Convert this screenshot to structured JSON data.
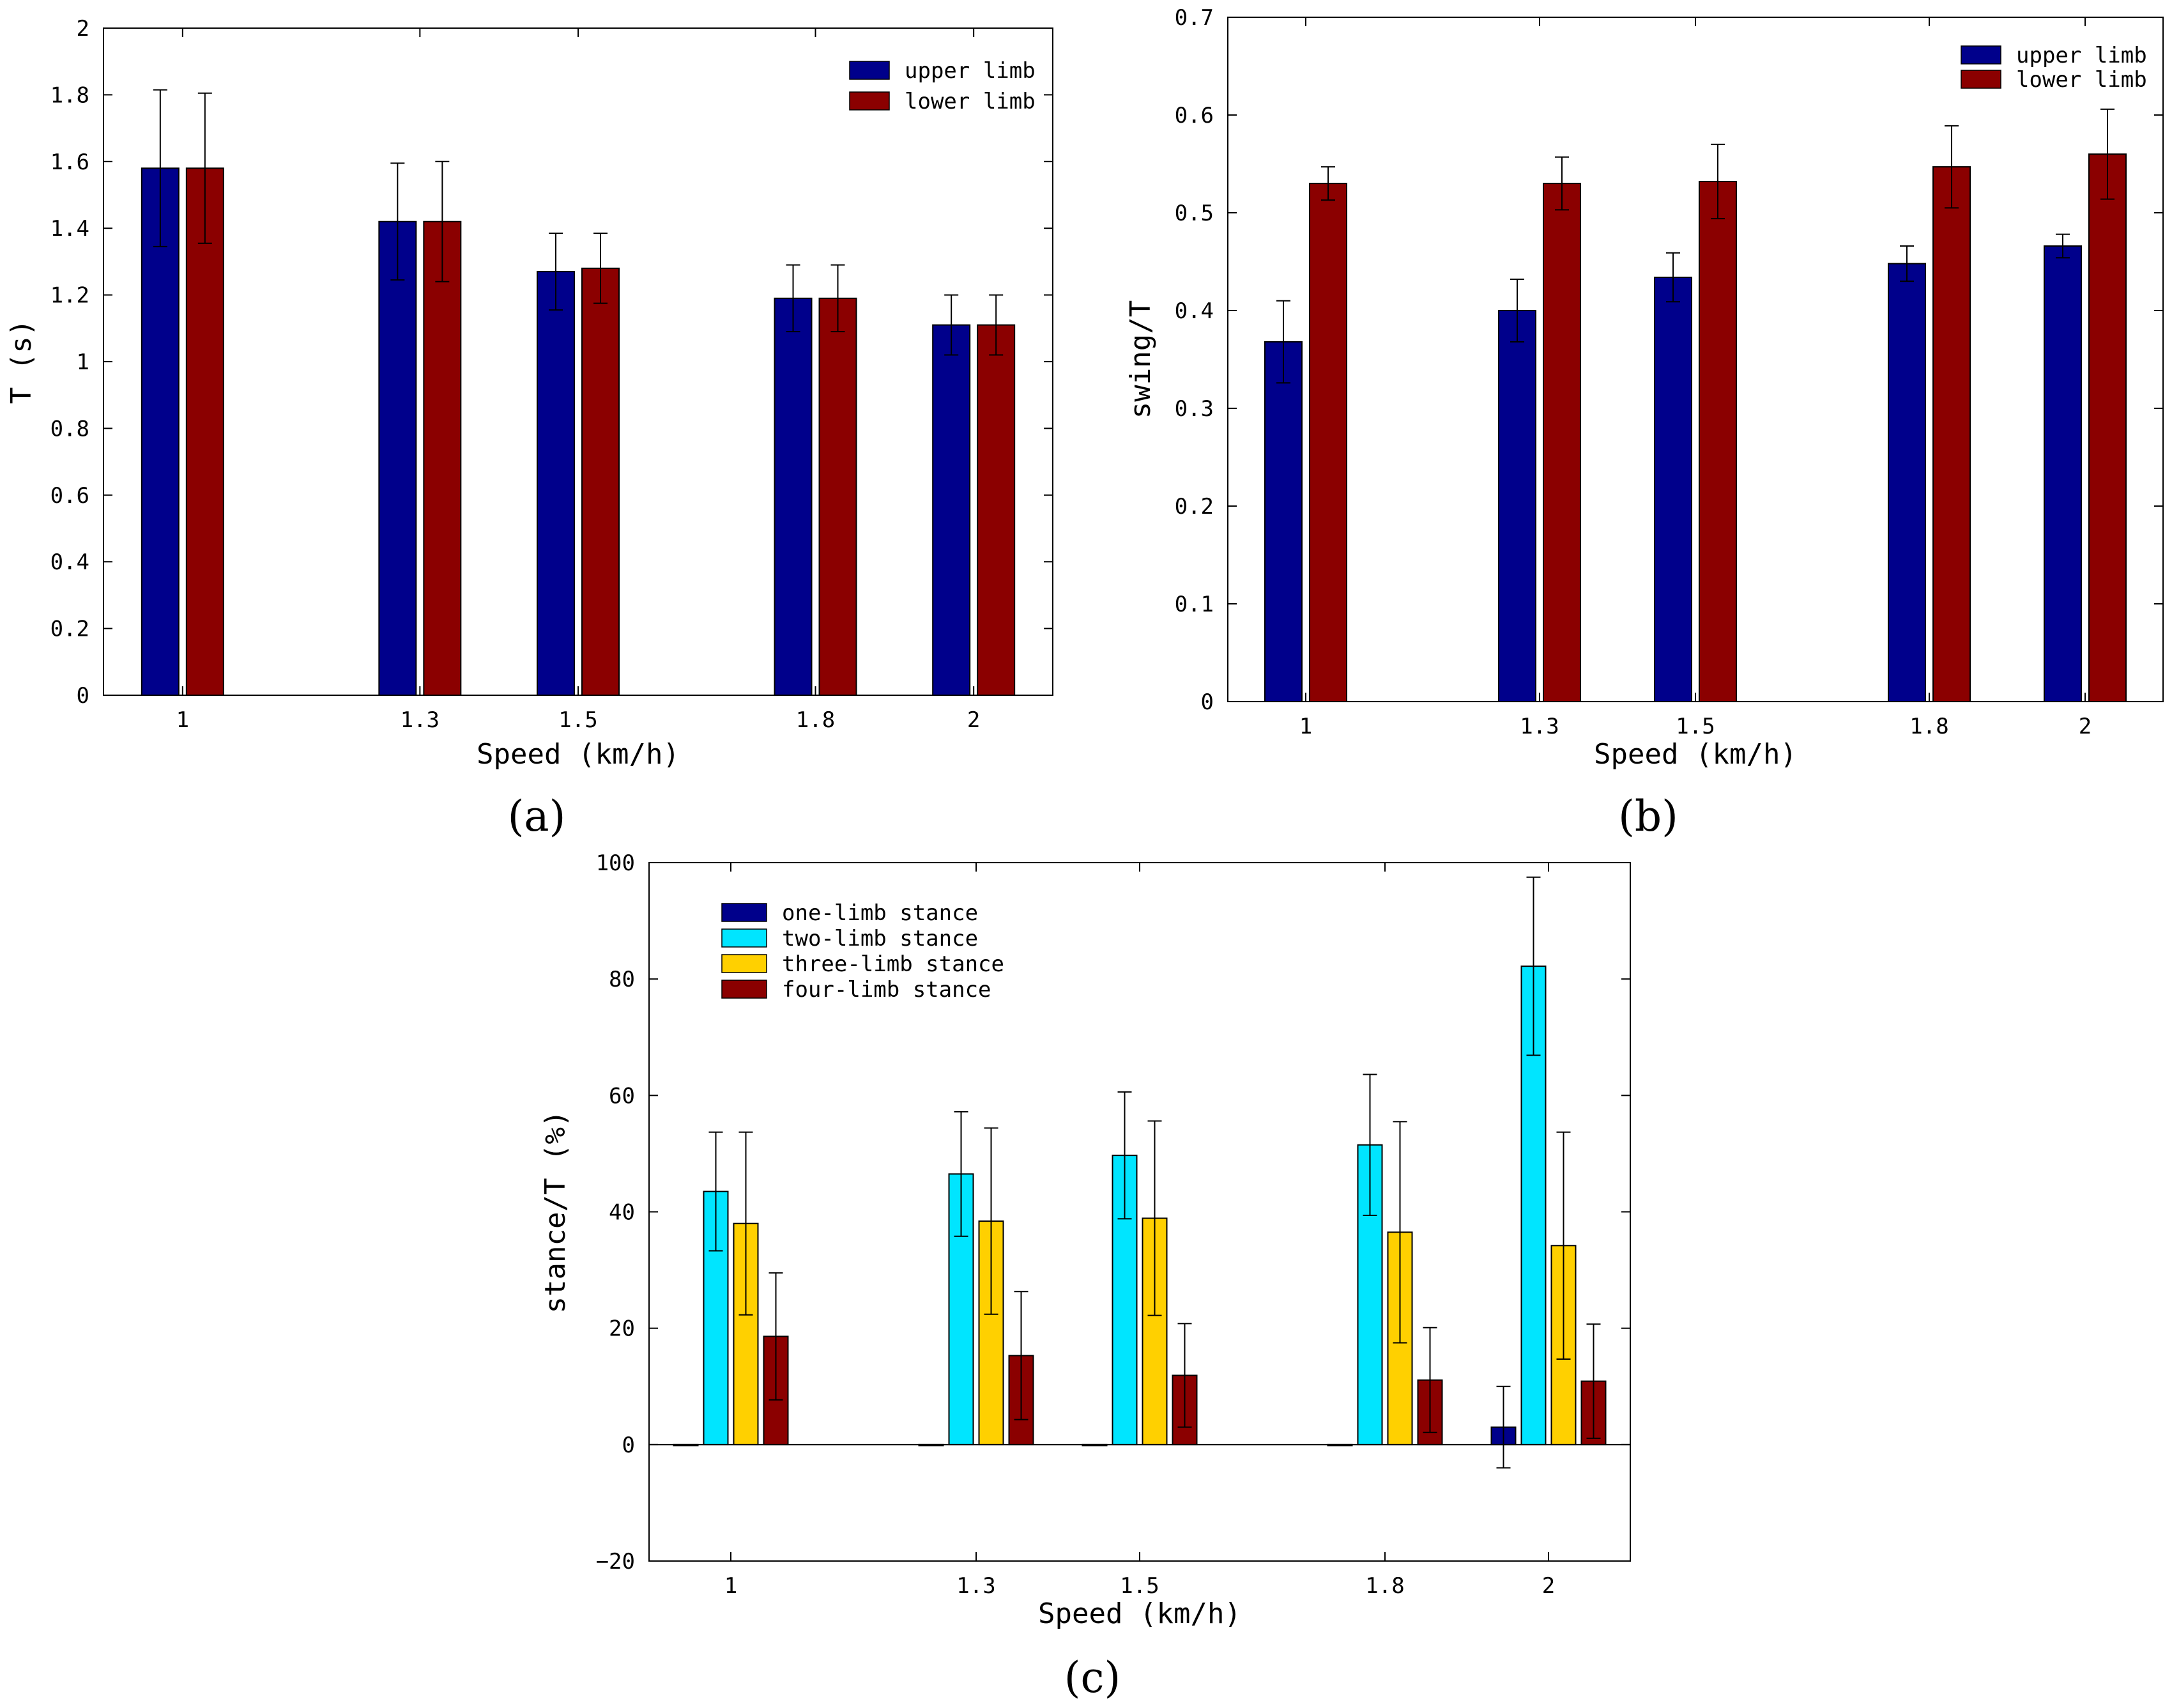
{
  "chart_data": [
    {
      "type": "bar",
      "panel_label": "(a)",
      "x": [
        1,
        1.3,
        1.5,
        1.8,
        2
      ],
      "x_tick_labels": [
        "1",
        "1.3",
        "1.5",
        "1.8",
        "2"
      ],
      "xlabel": "Speed  (km/h)",
      "ylabel": "T (s)",
      "ylim": [
        0,
        2
      ],
      "y_ticks": [
        0,
        0.2,
        0.4,
        0.6,
        0.8,
        1,
        1.2,
        1.4,
        1.6,
        1.8,
        2
      ],
      "y_tick_labels": [
        "0",
        "0.2",
        "0.4",
        "0.6",
        "0.8",
        "1",
        "1.2",
        "1.4",
        "1.6",
        "1.8",
        "2"
      ],
      "legend_position": "top-right",
      "series": [
        {
          "name": "upper limb",
          "color": "#00008B",
          "values": [
            1.58,
            1.42,
            1.27,
            1.19,
            1.11
          ],
          "errors": [
            0.235,
            0.175,
            0.115,
            0.1,
            0.09
          ]
        },
        {
          "name": "lower limb",
          "color": "#8B0000",
          "values": [
            1.58,
            1.42,
            1.28,
            1.19,
            1.11
          ],
          "errors": [
            0.225,
            0.18,
            0.105,
            0.1,
            0.09
          ]
        }
      ]
    },
    {
      "type": "bar",
      "panel_label": "(b)",
      "x": [
        1,
        1.3,
        1.5,
        1.8,
        2
      ],
      "x_tick_labels": [
        "1",
        "1.3",
        "1.5",
        "1.8",
        "2"
      ],
      "xlabel": "Speed  (km/h)",
      "ylabel": "swing/T",
      "ylim": [
        0,
        0.7
      ],
      "y_ticks": [
        0,
        0.1,
        0.2,
        0.3,
        0.4,
        0.5,
        0.6,
        0.7
      ],
      "y_tick_labels": [
        "0",
        "0.1",
        "0.2",
        "0.3",
        "0.4",
        "0.5",
        "0.6",
        "0.7"
      ],
      "legend_position": "top-right",
      "series": [
        {
          "name": "upper limb",
          "color": "#00008B",
          "values": [
            0.368,
            0.4,
            0.434,
            0.448,
            0.466
          ],
          "errors": [
            0.042,
            0.032,
            0.025,
            0.018,
            0.012
          ]
        },
        {
          "name": "lower limb",
          "color": "#8B0000",
          "values": [
            0.53,
            0.53,
            0.532,
            0.547,
            0.56
          ],
          "errors": [
            0.017,
            0.027,
            0.038,
            0.042,
            0.046
          ]
        }
      ]
    },
    {
      "type": "bar",
      "panel_label": "(c)",
      "x": [
        1,
        1.3,
        1.5,
        1.8,
        2
      ],
      "x_tick_labels": [
        "1",
        "1.3",
        "1.5",
        "1.8",
        "2"
      ],
      "xlabel": "Speed (km/h)",
      "ylabel": "stance/T (%)",
      "ylim": [
        -20,
        100
      ],
      "y_ticks": [
        -20,
        0,
        20,
        40,
        60,
        80,
        100
      ],
      "y_tick_labels": [
        "−20",
        "0",
        "20",
        "40",
        "60",
        "80",
        "100"
      ],
      "legend_position": "top-left",
      "series": [
        {
          "name": "one-limb stance",
          "color": "#00008B",
          "values": [
            0,
            0,
            0,
            0,
            3
          ],
          "errors": [
            0,
            0,
            0,
            0,
            7
          ]
        },
        {
          "name": "two-limb stance",
          "color": "#00E5FF",
          "values": [
            43.5,
            46.5,
            49.7,
            51.5,
            82.2
          ],
          "errors": [
            10.2,
            10.7,
            10.9,
            12.1,
            15.3
          ]
        },
        {
          "name": "three-limb stance",
          "color": "#FFD000",
          "values": [
            38,
            38.4,
            38.9,
            36.5,
            34.2
          ],
          "errors": [
            15.7,
            16,
            16.7,
            19,
            19.5
          ]
        },
        {
          "name": "four-limb stance",
          "color": "#8B0000",
          "values": [
            18.6,
            15.3,
            11.9,
            11.1,
            10.9
          ],
          "errors": [
            10.9,
            11,
            8.9,
            9,
            9.8
          ]
        }
      ]
    }
  ]
}
